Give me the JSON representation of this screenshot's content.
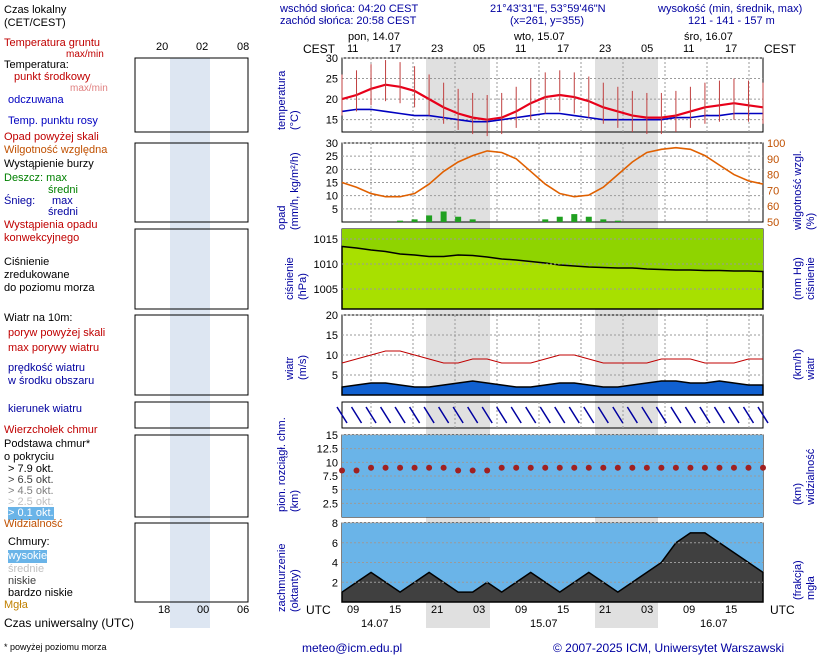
{
  "header": {
    "sunrise": "wschód słońca: 04:20 CEST",
    "sunset": "zachód słońca: 20:58 CEST",
    "coords": "21°43'31\"E, 53°59'46\"N",
    "grid": "(x=261, y=355)",
    "height_title": "wysokość (min, średnik, max)",
    "height_values": "121 - 141 - 157 m"
  },
  "legend": {
    "local_time": "Czas lokalny\n(CET/CEST)",
    "soil_temp": "Temperatura gruntu",
    "max_min": "max/min",
    "temperature": "Temperatura:",
    "dew_mid": "punkt środkowy",
    "max_min2": "max/min",
    "perceived": "odczuwana",
    "dew_point": "Temp. punktu rosy",
    "precip_above": "Opad powyżej skali",
    "humidity": "Wilgotność względna",
    "storm": "Wystąpienie burzy",
    "rain": "Deszcz: max",
    "rain_mid": "średni",
    "snow": "Śnieg:",
    "snow_max": "max",
    "snow_mid": "średni",
    "conv": "Wystąpienia opadu\nkonwekcyjnego",
    "pressure": "Ciśnienie\nzredukowane\ndo poziomu morza",
    "wind_title": "Wiatr na 10m:",
    "gust_above": "poryw powyżej skali",
    "max_gust": "max porywy wiatru",
    "mean_wind": "prędkość wiatru\nw środku obszaru",
    "wind_dir": "kierunek wiatru",
    "cumulonimbus_top": "Wierzchołek chmur",
    "cloud_base": "Podstawa chmur*\no pokryciu",
    "okt_79": "> 7.9 okt.",
    "okt_65": "> 6.5 okt.",
    "okt_45": "> 4.5 okt.",
    "okt_25": "> 2.5 okt.",
    "okt_01": "> 0.1 okt.",
    "visibility": "Widzialność",
    "clouds": "Chmury:",
    "high": "wysokie",
    "mid": "średnie",
    "low": "niskie",
    "very_low": "bardzo niskie",
    "fog": "Mgła",
    "utc": "Czas uniwersalny (UTC)",
    "footnote": "* powyżej poziomu morza"
  },
  "axes": {
    "temperature": "temperatura\n(°C)",
    "precip": "opad\n(mm/h, kg/m²/h)",
    "humidity": "wilgotność wzgl.\n(%)",
    "pressure": "ciśnienie\n(hPa)",
    "pressure_mm": "(mm Hg)\nciśnienie",
    "wind": "wiatr\n(m/s)",
    "wind_kmh": "(km/h)\nwiatr",
    "cloud_ceiling": "pion. rozciągł. chm.\n(km)",
    "visibility": "(km)\nwidzialność",
    "cloud_cover": "zachmurzenie\n(oktanty)",
    "fog_frac": "(frakcja)\nmgła",
    "cest": "CEST",
    "utc": "UTC"
  },
  "days": {
    "top": [
      "pon, 14.07",
      "wto, 15.07",
      "śro, 16.07"
    ],
    "bottom": [
      "14.07",
      "15.07",
      "16.07"
    ]
  },
  "hours": {
    "cest": [
      "11",
      "17",
      "23",
      "05",
      "11",
      "17",
      "23",
      "05",
      "11",
      "17"
    ],
    "utc": [
      "09",
      "15",
      "21",
      "03",
      "09",
      "15",
      "21",
      "03",
      "09",
      "15"
    ],
    "legend_cest": [
      "20",
      "02",
      "08"
    ],
    "legend_utc": [
      "18",
      "00",
      "06"
    ]
  },
  "footer": {
    "email": "meteo@icm.edu.pl",
    "copyright": "© 2007-2025 ICM, Uniwersytet Warszawski"
  },
  "colors": {
    "temp_line": "#e8001a",
    "perceived": "#0000c0",
    "humidity": "#e06000",
    "precip_bar": "#20a020",
    "pressure_fill": "#a8e000",
    "wind_fill": "#1060d0",
    "night_shade": "#d8d8d8",
    "cloud_bg": "#6ab4e8",
    "axis_blue": "#0000a0",
    "axis_orange": "#c05000"
  },
  "chart_data": [
    {
      "type": "line",
      "panel": "temperature",
      "ylabel": "temperatura (°C)",
      "ylim": [
        12,
        30
      ],
      "yticks": [
        15,
        20,
        25,
        30
      ],
      "series": [
        {
          "values": [
            20,
            21,
            22.5,
            23.5,
            23,
            22,
            20,
            18,
            16.5,
            15.5,
            15,
            15.5,
            17,
            19,
            20.5,
            21,
            20.5,
            19.5,
            18,
            17,
            16,
            15.5,
            15.5,
            16,
            17,
            18,
            18.5,
            19,
            18.5,
            18
          ]
        },
        {
          "values": [
            17,
            17.5,
            17.5,
            17,
            16.5,
            16,
            16,
            15.5,
            15,
            14.5,
            14.5,
            15,
            15.5,
            16,
            16.5,
            16.5,
            16,
            15.5,
            15,
            15,
            15,
            15,
            15,
            15.5,
            15.5,
            16,
            16,
            16.5,
            16.5,
            16.5
          ]
        }
      ]
    },
    {
      "type": "bar",
      "panel": "precipitation",
      "ylabel": "opad (mm/h, kg/m²/h)",
      "ylim": [
        0,
        30
      ],
      "yticks": [
        5,
        10,
        15,
        20,
        25,
        30
      ],
      "values": [
        0,
        0,
        0,
        0,
        0.5,
        1,
        2.5,
        4,
        2,
        1,
        0,
        0,
        0,
        0,
        1,
        2,
        3,
        2,
        1,
        0.5,
        0,
        0,
        0,
        0,
        0,
        0,
        0,
        0,
        0,
        0
      ],
      "series": [
        {
          "values": [
            75,
            72,
            68,
            66,
            66,
            68,
            74,
            82,
            88,
            92,
            95,
            94,
            90,
            82,
            74,
            68,
            66,
            67,
            72,
            80,
            88,
            94,
            96,
            97,
            96,
            92,
            86,
            80,
            76,
            74
          ]
        }
      ],
      "y2lim": [
        50,
        100
      ],
      "y2ticks": [
        50,
        60,
        70,
        80,
        90,
        100
      ]
    },
    {
      "type": "area",
      "panel": "pressure",
      "ylabel": "ciśnienie (hPa)",
      "ylim": [
        1001,
        1017
      ],
      "yticks": [
        1005,
        1010,
        1015
      ],
      "values": [
        1013.5,
        1013.2,
        1012.8,
        1012.5,
        1012.0,
        1011.8,
        1011.5,
        1011.5,
        1011.8,
        1011.7,
        1011.4,
        1011.0,
        1010.8,
        1010.5,
        1010.2,
        1009.8,
        1009.6,
        1009.4,
        1009.3,
        1009.2,
        1009.2,
        1009.0,
        1008.9,
        1008.8,
        1008.8,
        1008.7,
        1008.7,
        1008.6,
        1008.6,
        1008.5
      ]
    },
    {
      "type": "line",
      "panel": "wind",
      "ylabel": "wiatr (m/s)",
      "ylim": [
        0,
        20
      ],
      "yticks": [
        5,
        10,
        15,
        20
      ],
      "series": [
        {
          "values": [
            2,
            2.5,
            3,
            3,
            2.5,
            2,
            2,
            2.5,
            3,
            3.5,
            3,
            2.5,
            2,
            2,
            2.5,
            3,
            3,
            2.5,
            2,
            2,
            2.5,
            3,
            3.5,
            3.5,
            3,
            3,
            3.5,
            3,
            2.5,
            2.5
          ]
        },
        {
          "values": [
            8,
            9,
            10,
            11,
            11,
            10,
            9,
            8,
            8,
            9,
            9,
            8,
            8,
            8,
            9,
            10,
            10,
            9,
            8,
            8,
            8,
            8,
            9,
            9,
            9,
            8,
            8,
            8,
            9,
            9
          ]
        }
      ]
    },
    {
      "type": "scatter",
      "panel": "cloud_base",
      "ylabel": "pion. rozciągł. chm. (km)",
      "ylim": [
        0,
        15
      ],
      "yticks": [
        2.5,
        5.0,
        7.5,
        10.0,
        12.5,
        15.0
      ],
      "values": [
        8.5,
        8.5,
        9,
        9,
        9,
        9,
        9,
        9,
        8.5,
        8.5,
        8.5,
        9,
        9,
        9,
        9,
        9,
        9,
        9,
        9,
        9,
        9,
        9,
        9,
        9,
        9,
        9,
        9,
        9,
        9,
        9
      ]
    },
    {
      "type": "area",
      "panel": "cloud_cover",
      "ylabel": "zachmurzenie (oktanty)",
      "ylim": [
        0,
        8
      ],
      "yticks": [
        2,
        4,
        6,
        8
      ],
      "values": [
        1,
        2,
        3,
        2,
        1,
        2,
        3,
        2,
        1,
        1,
        2,
        1,
        2,
        3,
        2,
        1,
        2,
        3,
        2,
        1,
        2,
        3,
        4,
        6,
        7,
        7,
        6,
        5,
        4,
        3
      ]
    }
  ]
}
